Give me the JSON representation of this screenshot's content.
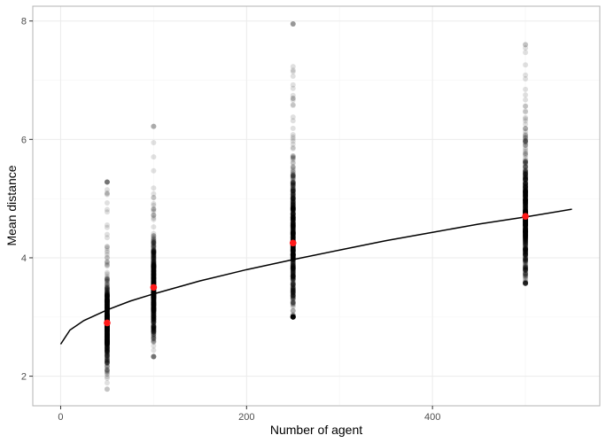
{
  "chart_data": {
    "type": "scatter",
    "title": "",
    "xlabel": "Number of agent",
    "ylabel": "Mean distance",
    "xlim": [
      -30,
      580
    ],
    "ylim": [
      1.5,
      8.25
    ],
    "x_ticks": [
      0,
      200,
      400
    ],
    "y_ticks": [
      2,
      4,
      6,
      8
    ],
    "x_tick_labels": [
      "0",
      "200",
      "400"
    ],
    "y_tick_labels": [
      "2",
      "4",
      "6",
      "8"
    ],
    "grid": true,
    "legend": "none",
    "colors": {
      "points": "#000000",
      "points_opacity": 0.12,
      "means": "#ff1a1a",
      "curve": "#000000",
      "grid_major": "#ebebeb",
      "grid_minor": "#f5f5f5",
      "panel_border": "#b3b3b3"
    },
    "series": [
      {
        "kind": "point-distributions",
        "groups": [
          {
            "x": 50,
            "min": 1.78,
            "max": 5.28,
            "q1": 2.62,
            "median": 2.85,
            "q3": 3.1
          },
          {
            "x": 100,
            "min": 2.33,
            "max": 6.22,
            "q1": 3.2,
            "median": 3.45,
            "q3": 3.75
          },
          {
            "x": 250,
            "min": 3.0,
            "max": 7.95,
            "q1": 3.8,
            "median": 4.2,
            "q3": 4.7
          },
          {
            "x": 500,
            "min": 3.57,
            "max": 7.6,
            "q1": 4.3,
            "median": 4.65,
            "q3": 5.05
          }
        ]
      },
      {
        "kind": "means",
        "x": [
          50,
          100,
          250,
          500
        ],
        "y": [
          2.9,
          3.5,
          4.25,
          4.7
        ]
      },
      {
        "kind": "fitted-curve",
        "x": [
          0,
          10,
          25,
          50,
          75,
          100,
          150,
          200,
          250,
          300,
          350,
          400,
          450,
          500,
          550
        ],
        "y": [
          2.54,
          2.78,
          2.94,
          3.12,
          3.27,
          3.39,
          3.61,
          3.8,
          3.97,
          4.13,
          4.29,
          4.43,
          4.57,
          4.69,
          4.82
        ]
      }
    ]
  }
}
